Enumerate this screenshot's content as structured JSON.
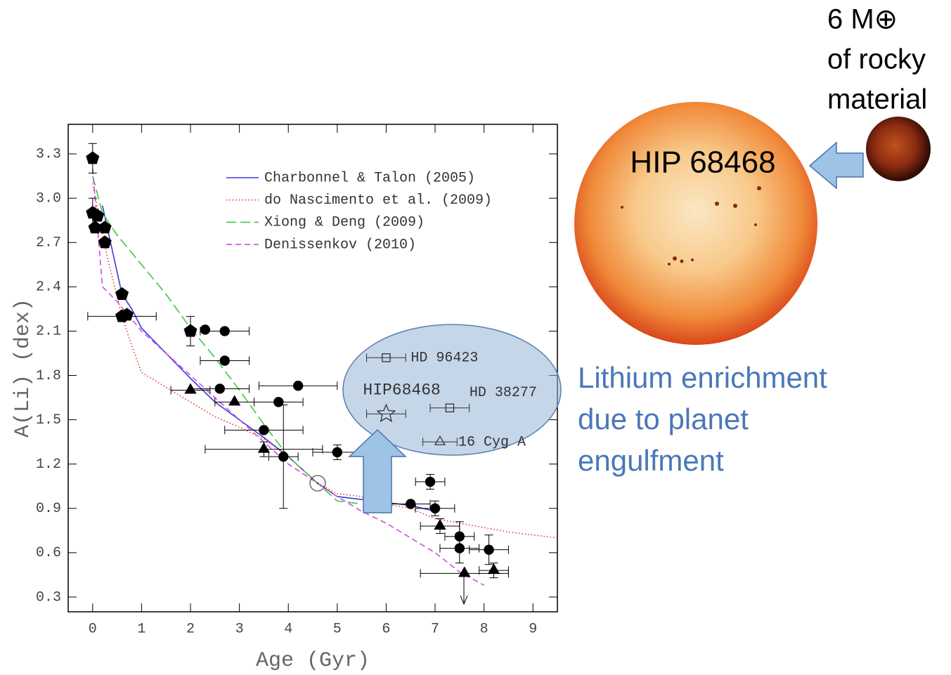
{
  "chart_data": {
    "type": "scatter",
    "xlabel": "Age (Gyr)",
    "ylabel": "A(Li) (dex)",
    "xlim": [
      -0.5,
      9.5
    ],
    "ylim": [
      0.2,
      3.5
    ],
    "xticks": [
      0,
      1,
      2,
      3,
      4,
      5,
      6,
      7,
      8,
      9
    ],
    "yticks": [
      0.3,
      0.6,
      0.9,
      1.2,
      1.5,
      1.8,
      2.1,
      2.4,
      2.7,
      {
        "value": 3,
        "label": "3.0"
      },
      3.3
    ],
    "legend": "upper-right",
    "series": [
      {
        "name": "Charbonnel & Talon (2005)",
        "color": "#3a3ad8",
        "dash": "solid",
        "x": [
          0.2,
          0.4,
          0.6,
          0.8,
          1,
          1.5,
          2,
          2.5,
          3,
          3.5,
          4,
          4.6,
          5,
          5.5,
          6,
          6.5,
          7
        ],
        "values": [
          2.95,
          2.65,
          2.35,
          2.25,
          2.12,
          1.95,
          1.78,
          1.62,
          1.5,
          1.38,
          1.25,
          1.07,
          0.98,
          0.96,
          0.94,
          0.92,
          0.88
        ]
      },
      {
        "name": "do Nascimento et al. (2009)",
        "color": "#e03a2a",
        "dash": "dotted",
        "x": [
          0,
          0.3,
          0.6,
          0.8,
          1,
          1.5,
          2,
          2.5,
          3,
          3.5,
          4,
          4.6,
          5,
          5.5,
          6,
          6.5,
          7,
          7.5,
          8,
          8.5,
          9,
          9.5
        ],
        "values": [
          3.1,
          2.6,
          2.2,
          2.0,
          1.82,
          1.72,
          1.62,
          1.52,
          1.45,
          1.37,
          1.25,
          1.07,
          1.0,
          0.98,
          0.93,
          0.9,
          0.83,
          0.8,
          0.77,
          0.74,
          0.72,
          0.7
        ]
      },
      {
        "name": "Xiong & Deng (2009)",
        "color": "#3cc83c",
        "dash": "long",
        "x": [
          0,
          0.2,
          0.5,
          1,
          1.5,
          2,
          2.5,
          3,
          3.5,
          4,
          4.6,
          5,
          5.5
        ],
        "values": [
          3.15,
          2.9,
          2.75,
          2.55,
          2.35,
          2.12,
          1.92,
          1.7,
          1.47,
          1.25,
          1.07,
          0.95,
          0.93
        ]
      },
      {
        "name": "Denissenkov (2010)",
        "color": "#d24ae0",
        "dash": "dashed",
        "x": [
          0,
          0.2,
          0.5,
          1,
          1.5,
          2,
          2.5,
          3,
          3.5,
          4,
          4.6,
          5,
          5.5,
          6,
          6.5,
          7,
          7.5,
          8
        ],
        "values": [
          3.2,
          2.4,
          2.3,
          2.1,
          1.95,
          1.8,
          1.65,
          1.5,
          1.35,
          1.2,
          1.07,
          0.98,
          0.88,
          0.8,
          0.7,
          0.6,
          0.47,
          0.38
        ]
      },
      {
        "marker": "pentagon",
        "color": "#000000",
        "x": [
          0,
          0,
          0.1,
          0.05,
          0.25,
          0.25,
          0.6,
          0.6,
          0.7,
          2
        ],
        "values": [
          3.27,
          2.9,
          2.88,
          2.8,
          2.8,
          2.7,
          2.35,
          2.2,
          2.21,
          2.1
        ],
        "xerr": [
          null,
          null,
          null,
          null,
          null,
          null,
          null,
          0.7,
          null,
          null
        ],
        "yerr": [
          0.1,
          0.1,
          null,
          null,
          null,
          null,
          null,
          null,
          null,
          0.1
        ]
      },
      {
        "marker": "circle",
        "color": "#000000",
        "x": [
          2.3,
          2.7,
          2.7,
          2.6,
          4.2,
          3.8,
          3.5,
          3.9,
          5,
          6.5,
          6.9,
          7,
          7.5,
          7.5,
          8.1
        ],
        "values": [
          2.11,
          2.1,
          1.9,
          1.71,
          1.73,
          1.62,
          1.43,
          1.25,
          1.28,
          0.93,
          1.08,
          0.9,
          0.71,
          0.63,
          0.62
        ],
        "xerr": [
          null,
          0.5,
          0.5,
          0.6,
          0.8,
          0.5,
          0.8,
          0.3,
          0.5,
          0.4,
          0.3,
          0.4,
          0.3,
          0.4,
          0.4
        ],
        "yerr": [
          null,
          null,
          null,
          null,
          null,
          null,
          null,
          0.35,
          0.05,
          null,
          0.05,
          0.05,
          0.1,
          0.1,
          0.1
        ]
      },
      {
        "marker": "triangle",
        "color": "#000000",
        "x": [
          2,
          2.9,
          3.5,
          7.1,
          7.6,
          8.2
        ],
        "values": [
          1.7,
          1.62,
          1.3,
          0.78,
          0.46,
          0.48
        ],
        "xerr": [
          0.4,
          0.4,
          1.2,
          0.4,
          0.9,
          0.3
        ],
        "yerr": [
          null,
          null,
          0.05,
          0.05,
          null,
          0.05
        ]
      }
    ],
    "sun": {
      "x": 4.6,
      "value": 1.07
    },
    "highlighted": {
      "labels": [
        "HD 96423",
        "HIP68468",
        "HD 38277",
        "16 Cyg A"
      ],
      "markers": [
        "square",
        "star",
        "square",
        "triangle"
      ],
      "x": [
        6,
        6,
        7.3,
        7.1
      ],
      "values": [
        1.92,
        1.54,
        1.58,
        1.35
      ],
      "xerr": [
        0.4,
        0.4,
        0.4,
        0.35
      ]
    }
  },
  "annotations": {
    "star_name": "HIP 68468",
    "planet_mass": "6 M⊕",
    "planet_line2": "of rocky",
    "planet_line3": "material",
    "caption": [
      "Lithium enrichment",
      "due to planet",
      "engulfment"
    ]
  }
}
